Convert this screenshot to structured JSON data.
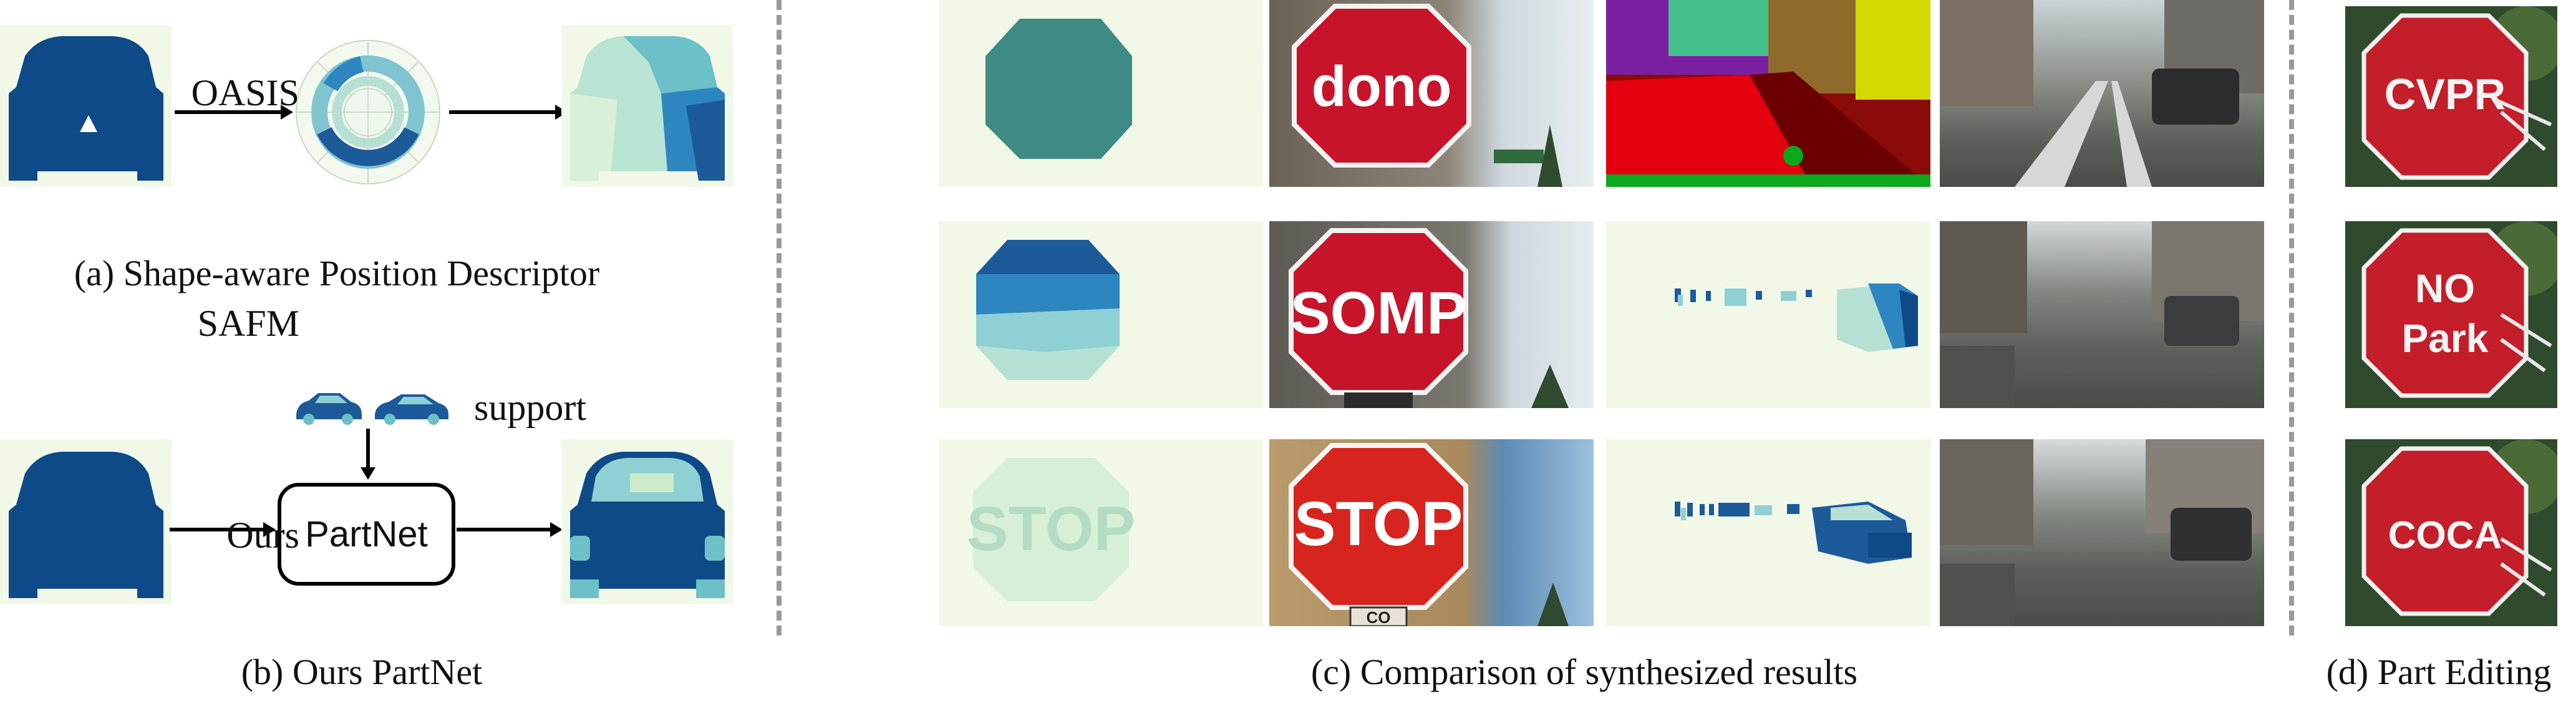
{
  "panels": {
    "a": {
      "caption": "(a) Shape-aware Position Descriptor"
    },
    "b": {
      "caption": "(b) Ours PartNet",
      "support_label": "support",
      "box_label": "PartNet"
    },
    "c": {
      "caption": "(c) Comparison of synthesized results",
      "rows": [
        "OASIS",
        "SAFM",
        "Ours"
      ]
    },
    "d": {
      "caption": "(d) Part Editing"
    }
  },
  "sign_text": {
    "oasis": "dono",
    "safm": "SOMP",
    "ours_mask": "STOP",
    "ours_photo": "STOP",
    "ours_plate": "CO",
    "edit_1": "CVPR",
    "edit_2_top": "NO",
    "edit_2_bottom": "Park",
    "edit_3": "COCA"
  },
  "colors": {
    "car_dark": "#0e4a87",
    "mask_bg": "#f1f8e8",
    "sign_red": "#c8142a",
    "dashed_line": "#9a9a9a"
  }
}
